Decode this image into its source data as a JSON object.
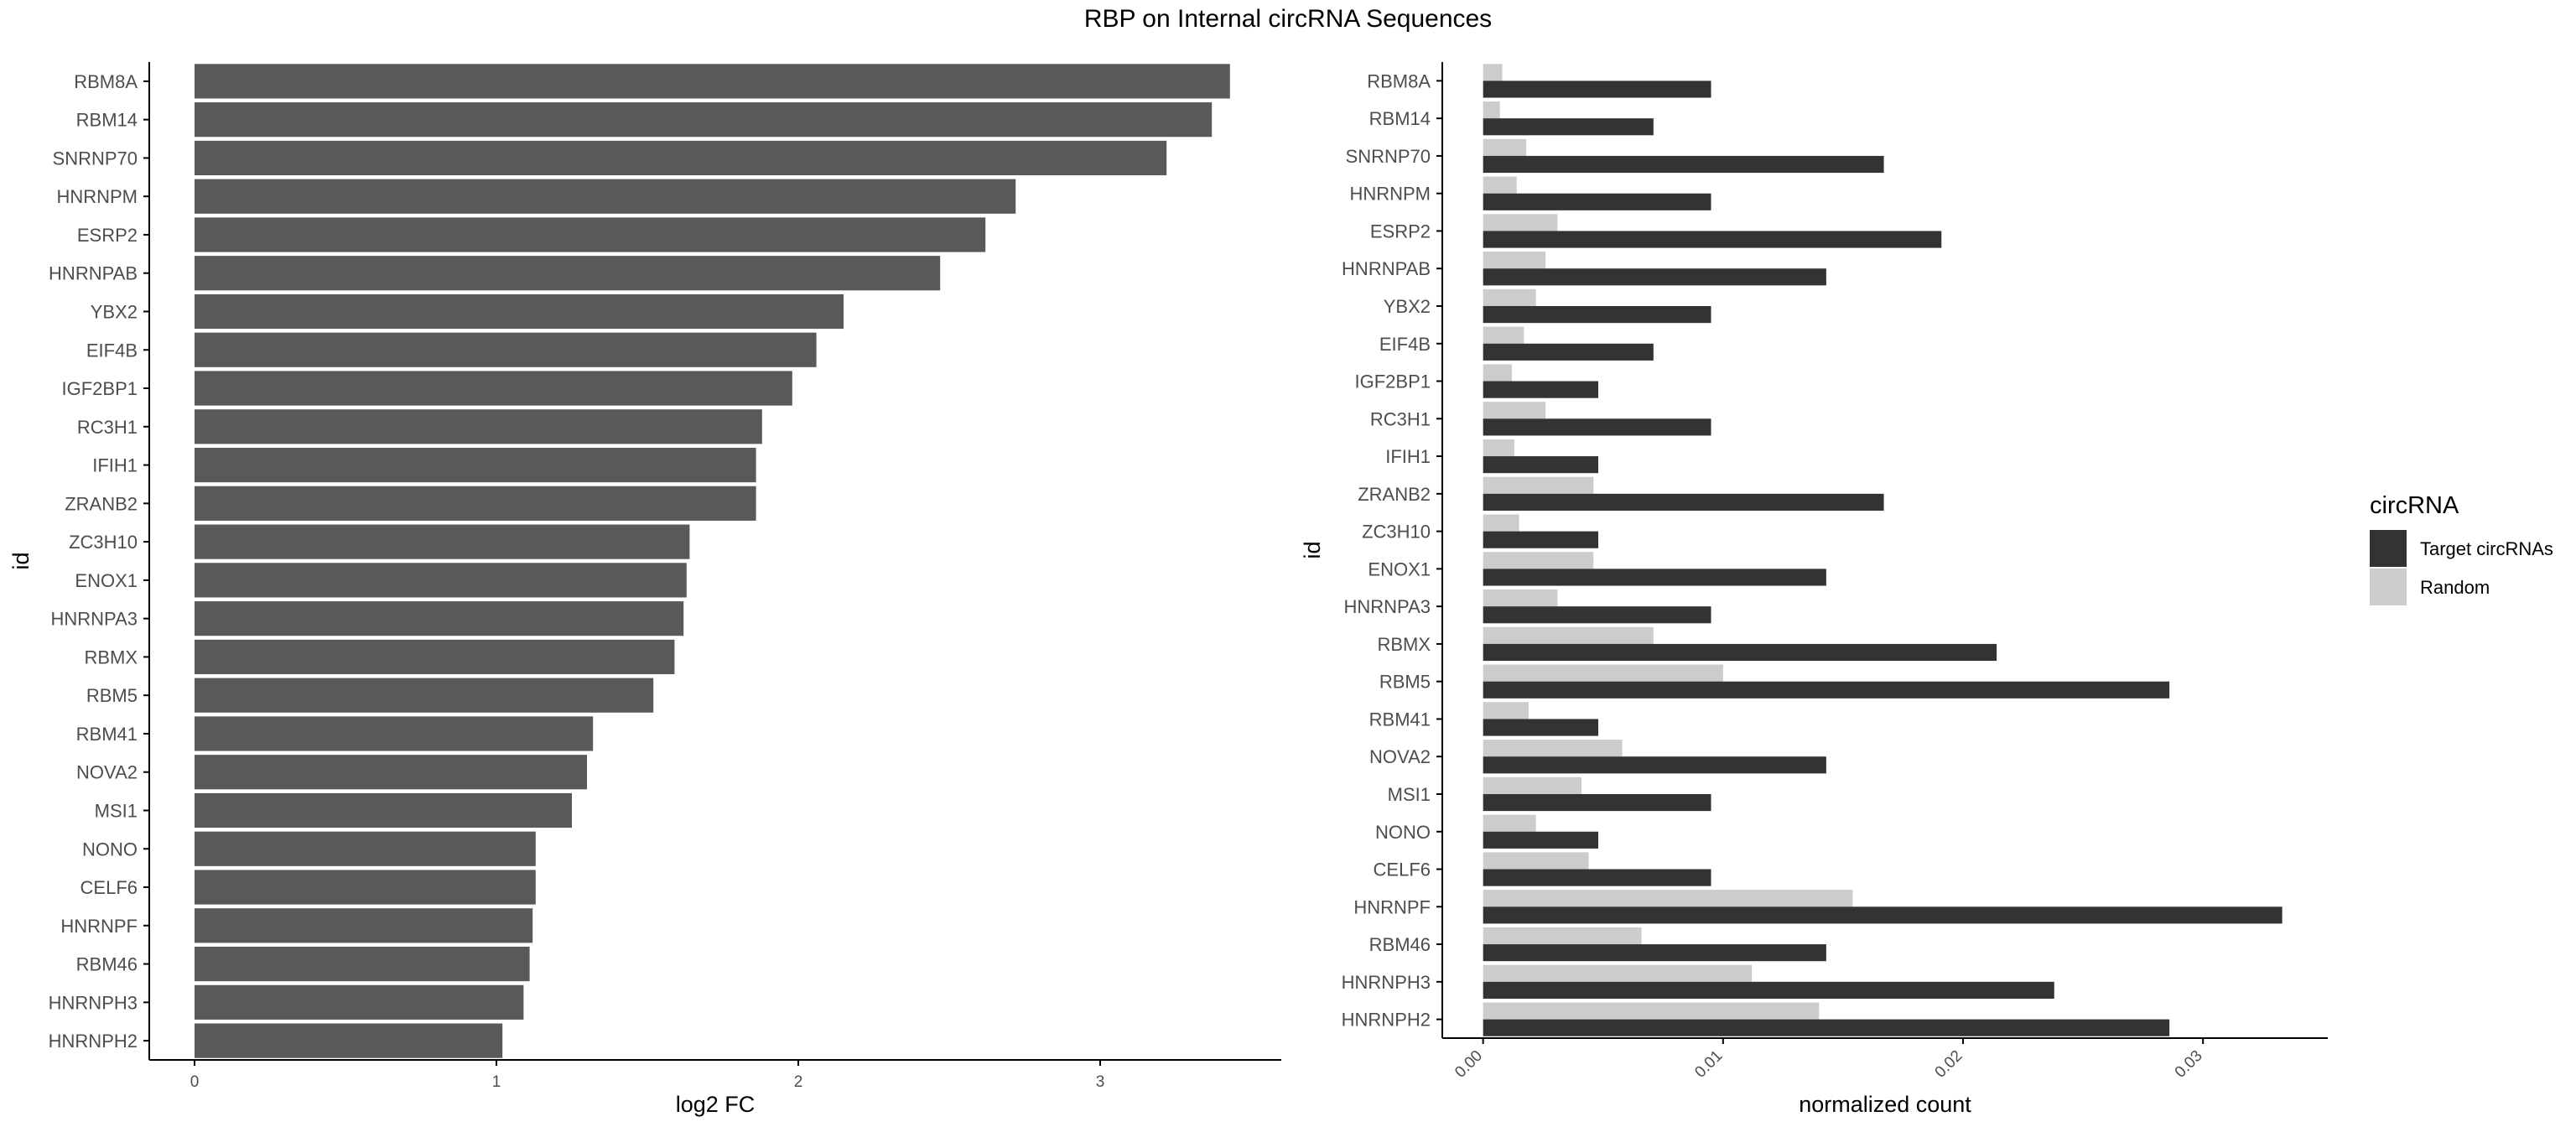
{
  "title": "RBP on Internal circRNA Sequences",
  "colors": {
    "left_bar": "#595959",
    "target": "#333333",
    "random": "#cccccc",
    "axis": "#000000",
    "tick_text": "#4d4d4d"
  },
  "chart_data": [
    {
      "type": "bar",
      "orientation": "horizontal",
      "xlabel": "log2 FC",
      "ylabel": "id",
      "xlim": [
        -0.15,
        3.6
      ],
      "xticks": [
        "0",
        "1",
        "2",
        "3"
      ],
      "grid": false,
      "categories": [
        "RBM8A",
        "RBM14",
        "SNRNP70",
        "HNRNPM",
        "ESRP2",
        "HNRNPAB",
        "YBX2",
        "EIF4B",
        "IGF2BP1",
        "RC3H1",
        "IFIH1",
        "ZRANB2",
        "ZC3H10",
        "ENOX1",
        "HNRNPA3",
        "RBMX",
        "RBM5",
        "RBM41",
        "NOVA2",
        "MSI1",
        "NONO",
        "CELF6",
        "HNRNPF",
        "RBM46",
        "HNRNPH3",
        "HNRNPH2"
      ],
      "values": [
        3.43,
        3.37,
        3.22,
        2.72,
        2.62,
        2.47,
        2.15,
        2.06,
        1.98,
        1.88,
        1.86,
        1.86,
        1.64,
        1.63,
        1.62,
        1.59,
        1.52,
        1.32,
        1.3,
        1.25,
        1.13,
        1.13,
        1.12,
        1.11,
        1.09,
        1.02
      ]
    },
    {
      "type": "bar",
      "orientation": "horizontal",
      "xlabel": "normalized count",
      "ylabel": "id",
      "xlim": [
        -0.0017,
        0.0352
      ],
      "xticks": [
        "0.00",
        "0.01",
        "0.02",
        "0.03"
      ],
      "grid": false,
      "legend_title": "circRNA",
      "legend_position": "right",
      "categories": [
        "RBM8A",
        "RBM14",
        "SNRNP70",
        "HNRNPM",
        "ESRP2",
        "HNRNPAB",
        "YBX2",
        "EIF4B",
        "IGF2BP1",
        "RC3H1",
        "IFIH1",
        "ZRANB2",
        "ZC3H10",
        "ENOX1",
        "HNRNPA3",
        "RBMX",
        "RBM5",
        "RBM41",
        "NOVA2",
        "MSI1",
        "NONO",
        "CELF6",
        "HNRNPF",
        "RBM46",
        "HNRNPH3",
        "HNRNPH2"
      ],
      "series": [
        {
          "name": "Target circRNAs",
          "values": [
            0.0095,
            0.0071,
            0.0167,
            0.0095,
            0.0191,
            0.0143,
            0.0095,
            0.0071,
            0.0048,
            0.0095,
            0.0048,
            0.0167,
            0.0048,
            0.0143,
            0.0095,
            0.0214,
            0.0286,
            0.0048,
            0.0143,
            0.0095,
            0.0048,
            0.0095,
            0.0333,
            0.0143,
            0.0238,
            0.0286
          ]
        },
        {
          "name": "Random",
          "values": [
            0.0008,
            0.0007,
            0.0018,
            0.0014,
            0.0031,
            0.0026,
            0.0022,
            0.0017,
            0.0012,
            0.0026,
            0.0013,
            0.0046,
            0.0015,
            0.0046,
            0.0031,
            0.0071,
            0.01,
            0.0019,
            0.0058,
            0.0041,
            0.0022,
            0.0044,
            0.0154,
            0.0066,
            0.0112,
            0.014
          ]
        }
      ]
    }
  ]
}
